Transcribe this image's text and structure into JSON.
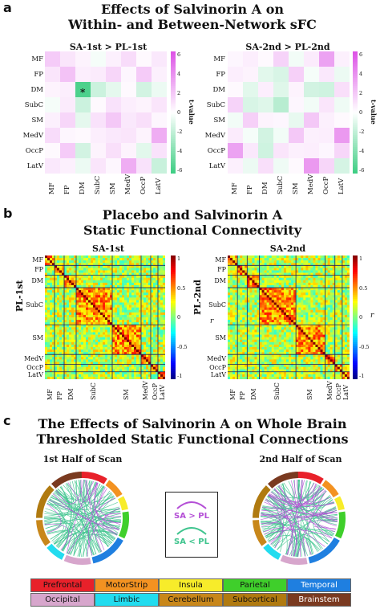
{
  "panel_a": {
    "letter": "a",
    "title_line1": "Effects of Salvinorin A on",
    "title_line2": "Within- and Between-Network sFC",
    "matrix_left_title": "SA-1st > PL-1st",
    "matrix_right_title": "SA-2nd > PL-2nd",
    "networks": [
      "MF",
      "FP",
      "DM",
      "SubC",
      "SM",
      "MedV",
      "OccP",
      "LatV"
    ],
    "colorbar_label": "t-value",
    "colorbar_ticks": [
      "6",
      "4",
      "2",
      "0",
      "-2",
      "-4",
      "-6"
    ],
    "star": "*",
    "left_values": [
      [
        1.8,
        0.9,
        0.4,
        -0.3,
        0.5,
        1.2,
        0.2,
        0.8
      ],
      [
        0.9,
        2.1,
        0.6,
        0.7,
        1.4,
        0.3,
        1.8,
        0.5
      ],
      [
        0.4,
        0.6,
        -5.5,
        -1.6,
        -0.8,
        0.2,
        -1.4,
        -0.6
      ],
      [
        -0.3,
        0.7,
        -1.6,
        0.2,
        1.0,
        0.6,
        0.4,
        0.9
      ],
      [
        0.5,
        1.4,
        -0.8,
        1.0,
        1.9,
        0.8,
        1.1,
        0.3
      ],
      [
        1.2,
        0.3,
        0.2,
        0.6,
        0.8,
        0.9,
        0.4,
        2.8
      ],
      [
        0.2,
        1.8,
        -1.4,
        0.4,
        1.1,
        0.4,
        -0.9,
        1.0
      ],
      [
        0.8,
        0.5,
        -0.6,
        0.9,
        0.3,
        2.8,
        1.0,
        -1.7
      ]
    ],
    "right_values": [
      [
        0.3,
        0.6,
        0.2,
        1.5,
        -0.4,
        0.7,
        3.2,
        0.5
      ],
      [
        0.6,
        0.4,
        -0.9,
        -1.2,
        1.6,
        -0.3,
        0.8,
        -0.6
      ],
      [
        0.2,
        -0.9,
        0.6,
        -1.0,
        0.4,
        -1.4,
        -1.5,
        1.1
      ],
      [
        1.5,
        -1.2,
        -1.0,
        -2.2,
        0.3,
        -0.4,
        0.9,
        -0.5
      ],
      [
        -0.4,
        1.6,
        0.4,
        0.3,
        -0.7,
        1.9,
        0.5,
        0.2
      ],
      [
        0.7,
        -0.3,
        -1.4,
        -0.4,
        1.9,
        0.5,
        0.6,
        3.5
      ],
      [
        3.2,
        0.8,
        -1.5,
        0.9,
        0.5,
        0.6,
        0.3,
        1.4
      ],
      [
        0.5,
        -0.6,
        1.1,
        -0.5,
        0.2,
        3.5,
        1.4,
        -1.3
      ]
    ]
  },
  "panel_b": {
    "letter": "b",
    "title_line1": "Placebo and Salvinorin A",
    "title_line2": "Static Functional Connectivity",
    "left_title": "SA-1st",
    "right_title": "SA-2nd",
    "left_ylabel": "PL-1st",
    "right_ylabel": "PL-2nd",
    "networks": [
      "MF",
      "FP",
      "DM",
      "SubC",
      "SM",
      "MedV",
      "OccP",
      "LatV"
    ],
    "colorbar_label": "r",
    "colorbar_ticks": [
      "1",
      "0.5",
      "0",
      "-0.5",
      "-1"
    ],
    "colorbar_side_label": "r"
  },
  "panel_c": {
    "letter": "c",
    "title_line1": "The Effects of Salvinorin A on Whole Brain",
    "title_line2": "Thresholded Static Functional Connections",
    "left_title": "1st Half of Scan",
    "right_title": "2nd Half of Scan",
    "legend_sa_gt": "SA > PL",
    "legend_sa_lt": "SA < PL",
    "colors": {
      "sa_gt": "#b44fd6",
      "sa_lt": "#3fc48e"
    },
    "regions": [
      {
        "label": "Prefrontal",
        "color": "#e8212a"
      },
      {
        "label": "MotorStrip",
        "color": "#f39221"
      },
      {
        "label": "Insula",
        "color": "#f7ec2a"
      },
      {
        "label": "Parietal",
        "color": "#3fcf2b"
      },
      {
        "label": "Temporal",
        "color": "#1f7fe0"
      },
      {
        "label": "Occipital",
        "color": "#d7a6cc"
      },
      {
        "label": "Limbic",
        "color": "#22dcef"
      },
      {
        "label": "Cerebellum",
        "color": "#c8871a"
      },
      {
        "label": "Subcortical",
        "color": "#b07a10"
      },
      {
        "label": "Brainstem",
        "color": "#7a3a20"
      }
    ]
  }
}
